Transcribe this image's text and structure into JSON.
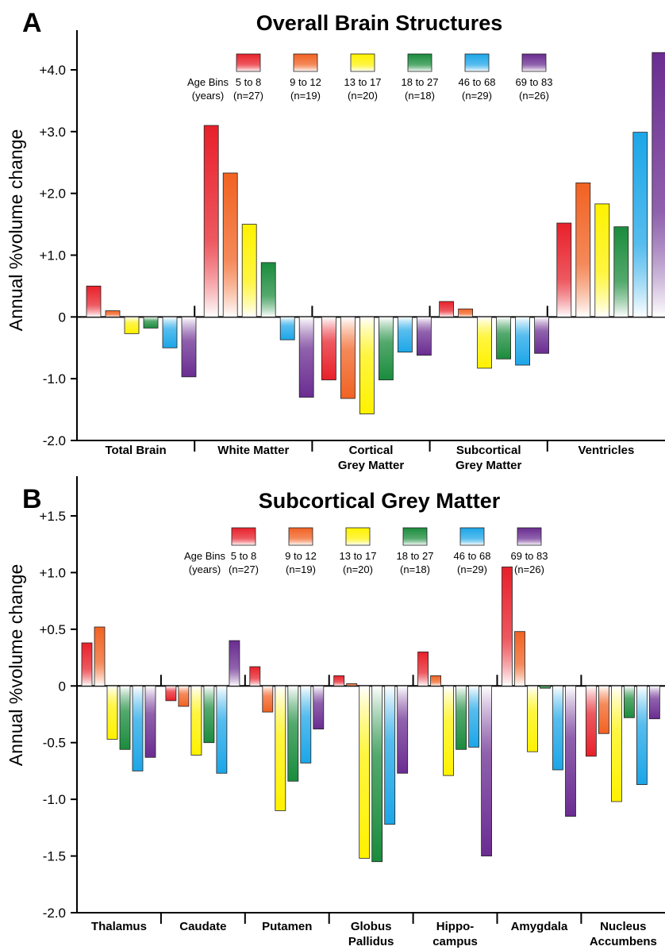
{
  "legend": {
    "heading": [
      "Age Bins",
      "(years)"
    ],
    "bins": [
      {
        "label": "5 to 8",
        "n": "(n=27)",
        "color": "#e8202a"
      },
      {
        "label": "9 to 12",
        "n": "(n=19)",
        "color": "#f16222"
      },
      {
        "label": "13 to 17",
        "n": "(n=20)",
        "color": "#fff200"
      },
      {
        "label": "18 to 27",
        "n": "(n=18)",
        "color": "#1a8c3c"
      },
      {
        "label": "46 to 68",
        "n": "(n=29)",
        "color": "#1ca6e8"
      },
      {
        "label": "69 to 83",
        "n": "(n=26)",
        "color": "#6a2c91"
      }
    ]
  },
  "chart_data": [
    {
      "panel": "A",
      "type": "bar",
      "title": "Overall Brain Structures",
      "ylabel": "Annual %volume change",
      "ylim": [
        -2.0,
        4.4
      ],
      "yticks": [
        {
          "v": 4.0,
          "label": "+4.0"
        },
        {
          "v": 3.0,
          "label": "+3.0"
        },
        {
          "v": 2.0,
          "label": "+2.0"
        },
        {
          "v": 1.0,
          "label": "+1.0"
        },
        {
          "v": 0,
          "label": "0"
        },
        {
          "v": -1.0,
          "label": "-1.0"
        },
        {
          "v": -2.0,
          "label": "-2.0"
        }
      ],
      "categories": [
        [
          "Total Brain"
        ],
        [
          "White Matter"
        ],
        [
          "Cortical",
          "Grey Matter"
        ],
        [
          "Subcortical",
          "Grey Matter"
        ],
        [
          "Ventricles"
        ]
      ],
      "series": [
        {
          "name": "5 to 8",
          "values": [
            0.5,
            3.1,
            -1.02,
            0.25,
            1.52
          ]
        },
        {
          "name": "9 to 12",
          "values": [
            0.1,
            2.33,
            -1.32,
            0.13,
            2.17
          ]
        },
        {
          "name": "13 to 17",
          "values": [
            -0.27,
            1.5,
            -1.57,
            -0.83,
            1.83
          ]
        },
        {
          "name": "18 to 27",
          "values": [
            -0.18,
            0.88,
            -1.02,
            -0.68,
            1.46
          ]
        },
        {
          "name": "46 to 68",
          "values": [
            -0.5,
            -0.37,
            -0.57,
            -0.78,
            2.99
          ]
        },
        {
          "name": "69 to 83",
          "values": [
            -0.97,
            -1.3,
            -0.62,
            -0.59,
            4.28
          ]
        }
      ],
      "grid": false
    },
    {
      "panel": "B",
      "type": "bar",
      "title": "Subcortical Grey Matter",
      "ylabel": "Annual %volume change",
      "ylim": [
        -2.0,
        1.7
      ],
      "yticks": [
        {
          "v": 1.5,
          "label": "+1.5"
        },
        {
          "v": 1.0,
          "label": "+1.0"
        },
        {
          "v": 0.5,
          "label": "+0.5"
        },
        {
          "v": 0,
          "label": "0"
        },
        {
          "v": -0.5,
          "label": "-0.5"
        },
        {
          "v": -1.0,
          "label": "-1.0"
        },
        {
          "v": -1.5,
          "label": "-1.5"
        },
        {
          "v": -2.0,
          "label": "-2.0"
        }
      ],
      "categories": [
        [
          "Thalamus"
        ],
        [
          "Caudate"
        ],
        [
          "Putamen"
        ],
        [
          "Globus",
          "Pallidus"
        ],
        [
          "Hippo-",
          "campus"
        ],
        [
          "Amygdala"
        ],
        [
          "Nucleus",
          "Accumbens"
        ]
      ],
      "series": [
        {
          "name": "5 to 8",
          "values": [
            0.38,
            -0.13,
            0.17,
            0.09,
            0.3,
            1.05,
            -0.62
          ]
        },
        {
          "name": "9 to 12",
          "values": [
            0.52,
            -0.18,
            -0.23,
            0.02,
            0.09,
            0.48,
            -0.42
          ]
        },
        {
          "name": "13 to 17",
          "values": [
            -0.47,
            -0.61,
            -1.1,
            -1.52,
            -0.79,
            -0.58,
            -1.02
          ]
        },
        {
          "name": "18 to 27",
          "values": [
            -0.56,
            -0.5,
            -0.84,
            -1.55,
            -0.56,
            -0.02,
            -0.28
          ]
        },
        {
          "name": "46 to 68",
          "values": [
            -0.75,
            -0.77,
            -0.68,
            -1.22,
            -0.54,
            -0.74,
            -0.87
          ]
        },
        {
          "name": "69 to 83",
          "values": [
            -0.63,
            0.4,
            -0.38,
            -0.77,
            -1.5,
            -1.15,
            -0.29
          ]
        }
      ],
      "grid": false
    }
  ]
}
